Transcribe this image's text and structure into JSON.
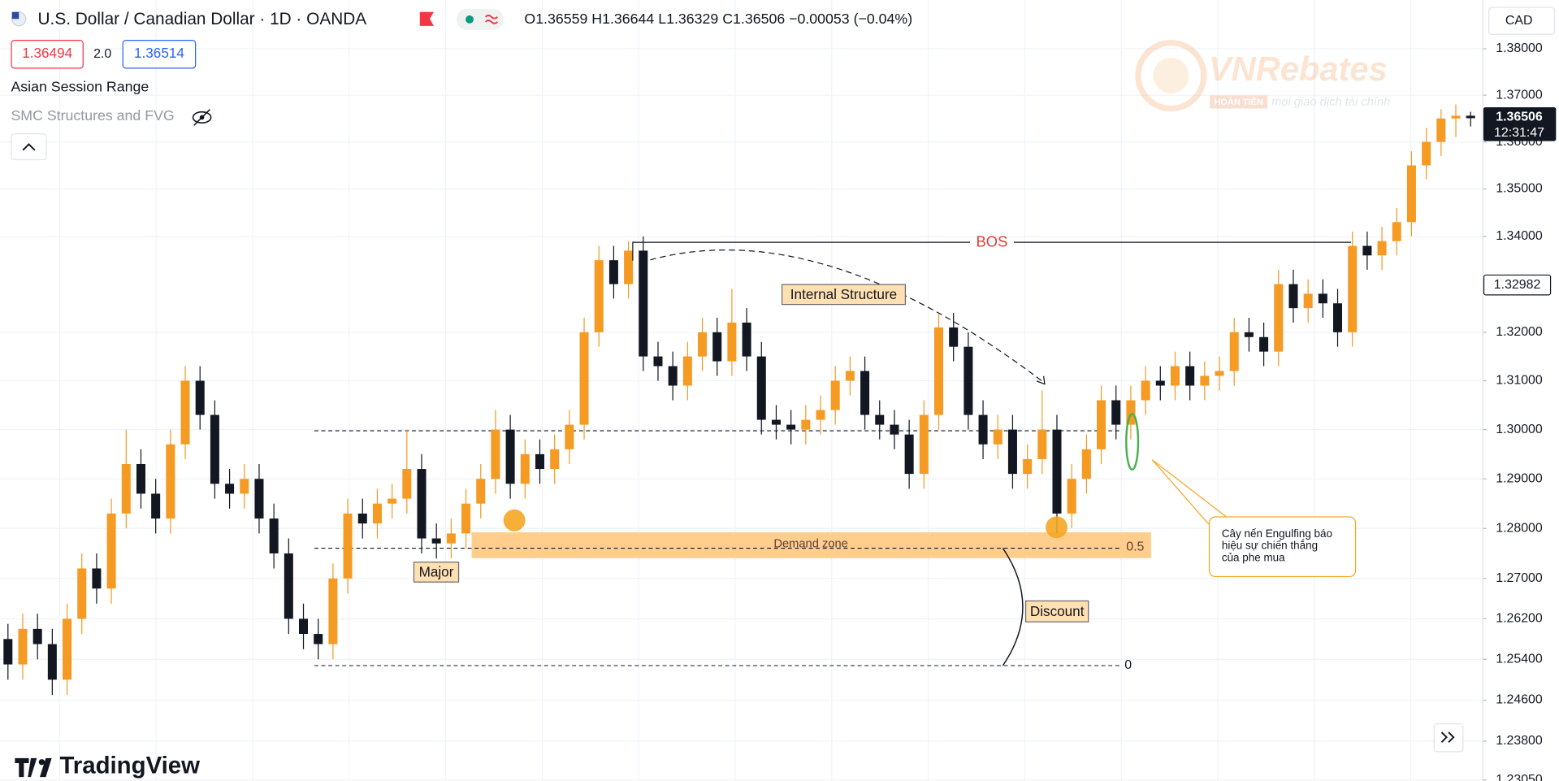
{
  "header": {
    "symbol": "U.S. Dollar / Canadian Dollar · 1D · OANDA",
    "ohlc": "O1.36559 H1.36644 L1.36329 C1.36506 −0.00053 (−0.04%)"
  },
  "trade": {
    "sell": "1.36494",
    "spread": "2.0",
    "buy": "1.36514"
  },
  "indicators": [
    "Asian Session Range",
    "SMC Structures and FVG"
  ],
  "currency": "CAD",
  "brand": "TradingView",
  "watermark": {
    "name": "VNRebates",
    "tag": "HOÀN TIỀN",
    "slogan": "mọi giao dịch tài chính"
  },
  "chart_data": {
    "type": "candlestick",
    "log": true,
    "grid": true,
    "up_color": "#f59a23",
    "down_color": "#131722",
    "ylim": [
      1.2303,
      1.3906
    ],
    "yticks": [
      {
        "value": 1.38,
        "label": "1.38000"
      },
      {
        "value": 1.37,
        "label": "1.37000"
      },
      {
        "value": 1.36,
        "label": "1.36000"
      },
      {
        "value": 1.35,
        "label": "1.35000"
      },
      {
        "value": 1.34,
        "label": "1.34000"
      },
      {
        "value": 1.32,
        "label": "1.32000"
      },
      {
        "value": 1.31,
        "label": "1.31000"
      },
      {
        "value": 1.3,
        "label": "1.30000"
      },
      {
        "value": 1.29,
        "label": "1.29000"
      },
      {
        "value": 1.28,
        "label": "1.28000"
      },
      {
        "value": 1.27,
        "label": "1.27000"
      },
      {
        "value": 1.262,
        "label": "1.26200"
      },
      {
        "value": 1.254,
        "label": "1.25400"
      },
      {
        "value": 1.246,
        "label": "1.24600"
      },
      {
        "value": 1.238,
        "label": "1.23800"
      },
      {
        "value": 1.2305,
        "label": "1.23050"
      }
    ],
    "last_price": {
      "value": 1.36506,
      "label": "1.36506"
    },
    "countdown": "12:31:47",
    "marker_price": {
      "value": 1.32982,
      "label": "1.32982"
    },
    "annotations": {
      "bos": "BOS",
      "internal": "Internal Structure",
      "demand": "Demand zone",
      "half": "0.5",
      "major": "Major",
      "discount": "Discount",
      "zero": "0",
      "engulfing": [
        "Cây nến Engulfing báo",
        "hiệu sự chiến thắng",
        "của phe mua"
      ]
    },
    "open": [
      1.258,
      1.253,
      1.26,
      1.257,
      1.25,
      1.262,
      1.272,
      1.268,
      1.283,
      1.293,
      1.287,
      1.282,
      1.297,
      1.31,
      1.303,
      1.289,
      1.287,
      1.29,
      1.282,
      1.275,
      1.262,
      1.259,
      1.257,
      1.27,
      1.283,
      1.281,
      1.285,
      1.286,
      1.292,
      1.278,
      1.277,
      1.279,
      1.285,
      1.29,
      1.3,
      1.289,
      1.295,
      1.292,
      1.296,
      1.301,
      1.32,
      1.335,
      1.33,
      1.337,
      1.315,
      1.313,
      1.309,
      1.315,
      1.32,
      1.314,
      1.322,
      1.315,
      1.302,
      1.301,
      1.3,
      1.302,
      1.304,
      1.31,
      1.312,
      1.303,
      1.301,
      1.299,
      1.291,
      1.303,
      1.321,
      1.317,
      1.303,
      1.297,
      1.3,
      1.291,
      1.294,
      1.3,
      1.283,
      1.29,
      1.296,
      1.306,
      1.301,
      1.306,
      1.31,
      1.309,
      1.313,
      1.309,
      1.311,
      1.312,
      1.32,
      1.319,
      1.316,
      1.33,
      1.325,
      1.328,
      1.326,
      1.32,
      1.338,
      1.336,
      1.339,
      1.343,
      1.355,
      1.36,
      1.365,
      1.36559
    ],
    "high": [
      1.261,
      1.263,
      1.263,
      1.26,
      1.265,
      1.275,
      1.275,
      1.286,
      1.3,
      1.296,
      1.29,
      1.3,
      1.313,
      1.313,
      1.306,
      1.292,
      1.293,
      1.293,
      1.285,
      1.278,
      1.265,
      1.262,
      1.273,
      1.286,
      1.286,
      1.288,
      1.289,
      1.3,
      1.295,
      1.281,
      1.282,
      1.288,
      1.293,
      1.304,
      1.303,
      1.298,
      1.298,
      1.299,
      1.304,
      1.323,
      1.338,
      1.338,
      1.339,
      1.34,
      1.318,
      1.316,
      1.318,
      1.323,
      1.323,
      1.329,
      1.325,
      1.318,
      1.305,
      1.304,
      1.305,
      1.307,
      1.313,
      1.315,
      1.315,
      1.306,
      1.304,
      1.302,
      1.306,
      1.324,
      1.324,
      1.32,
      1.306,
      1.303,
      1.303,
      1.297,
      1.308,
      1.303,
      1.293,
      1.299,
      1.309,
      1.309,
      1.309,
      1.313,
      1.313,
      1.316,
      1.316,
      1.314,
      1.315,
      1.323,
      1.323,
      1.322,
      1.333,
      1.333,
      1.331,
      1.331,
      1.329,
      1.341,
      1.341,
      1.342,
      1.346,
      1.358,
      1.363,
      1.367,
      1.368,
      1.36644
    ],
    "low": [
      1.25,
      1.25,
      1.254,
      1.247,
      1.247,
      1.259,
      1.265,
      1.265,
      1.28,
      1.284,
      1.279,
      1.279,
      1.294,
      1.3,
      1.286,
      1.284,
      1.284,
      1.279,
      1.272,
      1.259,
      1.256,
      1.254,
      1.254,
      1.267,
      1.278,
      1.278,
      1.282,
      1.283,
      1.275,
      1.274,
      1.274,
      1.276,
      1.282,
      1.287,
      1.286,
      1.286,
      1.289,
      1.289,
      1.293,
      1.298,
      1.317,
      1.327,
      1.327,
      1.312,
      1.31,
      1.306,
      1.306,
      1.312,
      1.311,
      1.311,
      1.312,
      1.299,
      1.298,
      1.297,
      1.297,
      1.299,
      1.301,
      1.307,
      1.3,
      1.298,
      1.296,
      1.288,
      1.288,
      1.3,
      1.314,
      1.3,
      1.294,
      1.294,
      1.288,
      1.288,
      1.291,
      1.279,
      1.28,
      1.287,
      1.293,
      1.298,
      1.298,
      1.303,
      1.306,
      1.306,
      1.306,
      1.306,
      1.308,
      1.309,
      1.316,
      1.313,
      1.313,
      1.322,
      1.322,
      1.323,
      1.317,
      1.317,
      1.333,
      1.333,
      1.336,
      1.34,
      1.352,
      1.357,
      1.361,
      1.36329
    ],
    "close": [
      1.253,
      1.26,
      1.257,
      1.25,
      1.262,
      1.272,
      1.268,
      1.283,
      1.293,
      1.287,
      1.282,
      1.297,
      1.31,
      1.303,
      1.289,
      1.287,
      1.29,
      1.282,
      1.275,
      1.262,
      1.259,
      1.257,
      1.27,
      1.283,
      1.281,
      1.285,
      1.286,
      1.292,
      1.278,
      1.277,
      1.279,
      1.285,
      1.29,
      1.3,
      1.289,
      1.295,
      1.292,
      1.296,
      1.301,
      1.32,
      1.335,
      1.33,
      1.337,
      1.315,
      1.313,
      1.309,
      1.315,
      1.32,
      1.314,
      1.322,
      1.315,
      1.302,
      1.301,
      1.3,
      1.302,
      1.304,
      1.31,
      1.312,
      1.303,
      1.301,
      1.299,
      1.291,
      1.303,
      1.321,
      1.317,
      1.303,
      1.297,
      1.3,
      1.291,
      1.294,
      1.3,
      1.283,
      1.29,
      1.296,
      1.306,
      1.301,
      1.306,
      1.31,
      1.309,
      1.313,
      1.309,
      1.311,
      1.312,
      1.32,
      1.319,
      1.316,
      1.33,
      1.325,
      1.328,
      1.326,
      1.32,
      1.338,
      1.336,
      1.339,
      1.343,
      1.355,
      1.36,
      1.365,
      1.36559,
      1.36506
    ]
  }
}
